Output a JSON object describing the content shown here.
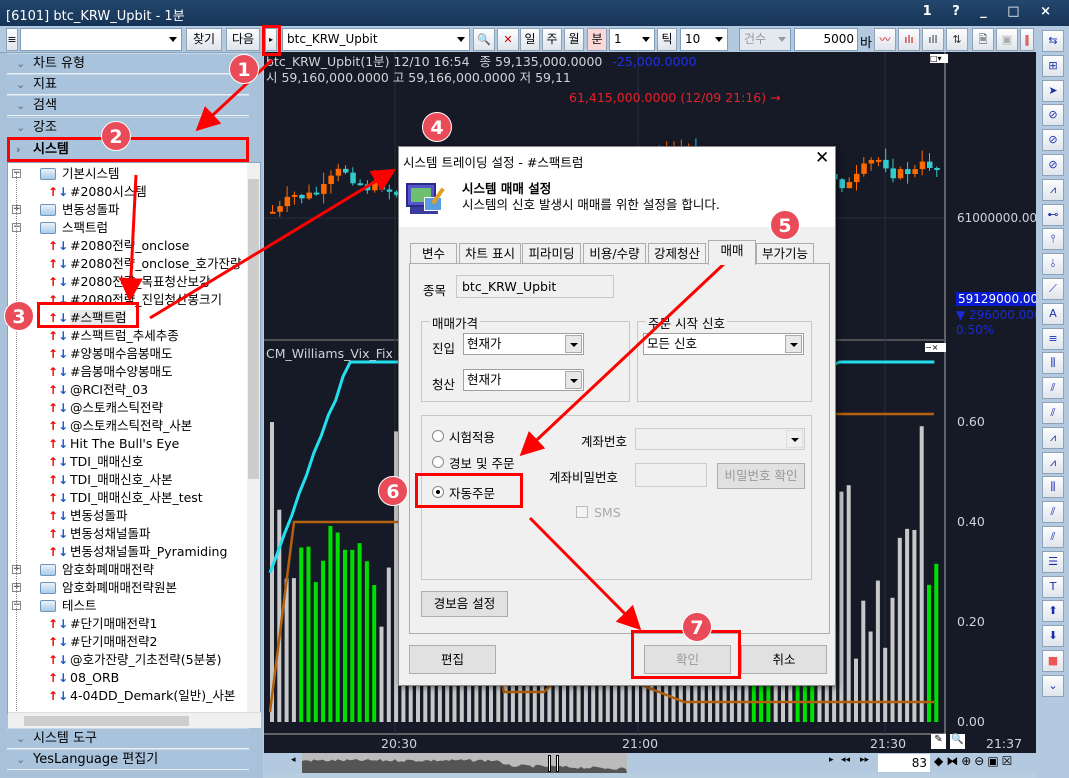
{
  "window": {
    "title": "[6101] btc_KRW_Upbit - 1분",
    "controls": "1 ? _ □ ×"
  },
  "toolbar": {
    "search_value": "",
    "find_label": "찾기",
    "next_label": "다음",
    "symbol": "btc_KRW_Upbit",
    "period_buttons": [
      "일",
      "주",
      "월",
      "분"
    ],
    "period_value": "1",
    "tick_label": "틱",
    "tick_value": "10",
    "count_label": "건수",
    "bars_value": "5000",
    "bars_unit": "바"
  },
  "sidebar": {
    "sections": [
      "차트 유형",
      "지표",
      "검색",
      "강조",
      "시스템"
    ],
    "bottom_sections": [
      "시스템 도구",
      "YesLanguage 편집기"
    ],
    "tree": [
      {
        "label": "기본시스템",
        "type": "folder",
        "open": true,
        "level": 0
      },
      {
        "label": "#2080시스템",
        "type": "item",
        "level": 1
      },
      {
        "label": "변동성돌파",
        "type": "folder",
        "open": false,
        "level": 0
      },
      {
        "label": "스팩트럼",
        "type": "folder",
        "open": true,
        "level": 0
      },
      {
        "label": "#2080전략_onclose",
        "type": "item",
        "level": 1
      },
      {
        "label": "#2080전략_onclose_호가잔량",
        "type": "item",
        "level": 1
      },
      {
        "label": "#2080전략_목표청산보강",
        "type": "item",
        "level": 1
      },
      {
        "label": "#2080전략_진입청산봉크기",
        "type": "item",
        "level": 1
      },
      {
        "label": "#스팩트럼",
        "type": "item",
        "level": 1,
        "selected": true
      },
      {
        "label": "#스팩트럼_추세추종",
        "type": "item",
        "level": 1
      },
      {
        "label": "#양봉매수음봉매도",
        "type": "item",
        "level": 1
      },
      {
        "label": "#음봉매수양봉매도",
        "type": "item",
        "level": 1
      },
      {
        "label": "@RCI전략_03",
        "type": "item",
        "level": 1
      },
      {
        "label": "@스토캐스틱전략",
        "type": "item",
        "level": 1
      },
      {
        "label": "@스토캐스틱전략_사본",
        "type": "item",
        "level": 1
      },
      {
        "label": "Hit The Bull's Eye",
        "type": "item",
        "level": 1
      },
      {
        "label": "TDI_매매신호",
        "type": "item",
        "level": 1
      },
      {
        "label": "TDI_매매신호_사본",
        "type": "item",
        "level": 1
      },
      {
        "label": "TDI_매매신호_사본_test",
        "type": "item",
        "level": 1
      },
      {
        "label": "변동성돌파",
        "type": "item",
        "level": 1
      },
      {
        "label": "변동성채널돌파",
        "type": "item",
        "level": 1
      },
      {
        "label": "변동성채널돌파_Pyramiding",
        "type": "item",
        "level": 1
      },
      {
        "label": "암호화폐매매전략",
        "type": "folder",
        "open": false,
        "level": 0
      },
      {
        "label": "암호화폐매매전략원본",
        "type": "folder",
        "open": false,
        "level": 0
      },
      {
        "label": "테스트",
        "type": "folder",
        "open": true,
        "level": 0
      },
      {
        "label": "#단기매매전략1",
        "type": "item",
        "level": 1
      },
      {
        "label": "#단기매매전략2",
        "type": "item",
        "level": 1
      },
      {
        "label": "@호가잔량_기초전략(5분봉)",
        "type": "item",
        "level": 1
      },
      {
        "label": "08_ORB",
        "type": "item",
        "level": 1
      },
      {
        "label": "4-04DD_Demark(일반)_사본",
        "type": "item",
        "level": 1
      }
    ]
  },
  "chart": {
    "header_symbol": "btc_KRW_Upbit(1분) 12/10 16:54",
    "close_label": "종 59,135,000.0000",
    "change": "-25,000.0000",
    "ohl": "시 59,160,000.0000 고 59,166,000.0000 저 59,11",
    "high_marker": "61,415,000.0000 (12/09 21:16) →",
    "price_axis": "61000000.0000",
    "current_price": "59129000.0000",
    "diff": "▼ 296000.0000",
    "diff_pct": "0.50%",
    "indicator_name": "CM_Williams_Vix_Fix (2",
    "indicator_axis": [
      "0.60",
      "0.40",
      "0.20",
      "0.00"
    ],
    "time_axis": [
      "20:30",
      "21:00",
      "21:30",
      "21:37"
    ],
    "visible_count": "83",
    "colors": {
      "up": "#ff6a00",
      "down": "#33cccc",
      "green_bar": "#00e000",
      "gray_bar": "#c8c8c8",
      "vix_line": "#22e0f0",
      "ma_line": "#b5600c"
    }
  },
  "dialog": {
    "title": "시스템 트레이딩 설정 - #스팩트럼",
    "heading": "시스템 매매 설정",
    "description": "시스템의 신호 발생시 매매를 위한 설정을 합니다.",
    "tabs": [
      "변수",
      "차트 표시",
      "피라미딩",
      "비용/수량",
      "강제청산",
      "매매",
      "부가기능"
    ],
    "active_tab": "매매",
    "symbol_label": "종목",
    "symbol_value": "btc_KRW_Upbit",
    "price_group": "매매가격",
    "entry_label": "진입",
    "entry_value": "현재가",
    "exit_label": "청산",
    "exit_value": "현재가",
    "signal_group": "주문 시작 신호",
    "signal_value": "모든 신호",
    "modes": [
      "시험적용",
      "경보 및 주문",
      "자동주문"
    ],
    "selected_mode": "자동주문",
    "account_label": "계좌번호",
    "account_value": "",
    "password_label": "계좌비밀번호",
    "password_value": "",
    "password_check": "비밀번호 확인",
    "sms_label": "SMS",
    "alarm_button": "경보음 설정",
    "edit_button": "편집",
    "ok_button": "확인",
    "cancel_button": "취소"
  },
  "annotations": [
    "1",
    "2",
    "3",
    "4",
    "5",
    "6",
    "7"
  ]
}
